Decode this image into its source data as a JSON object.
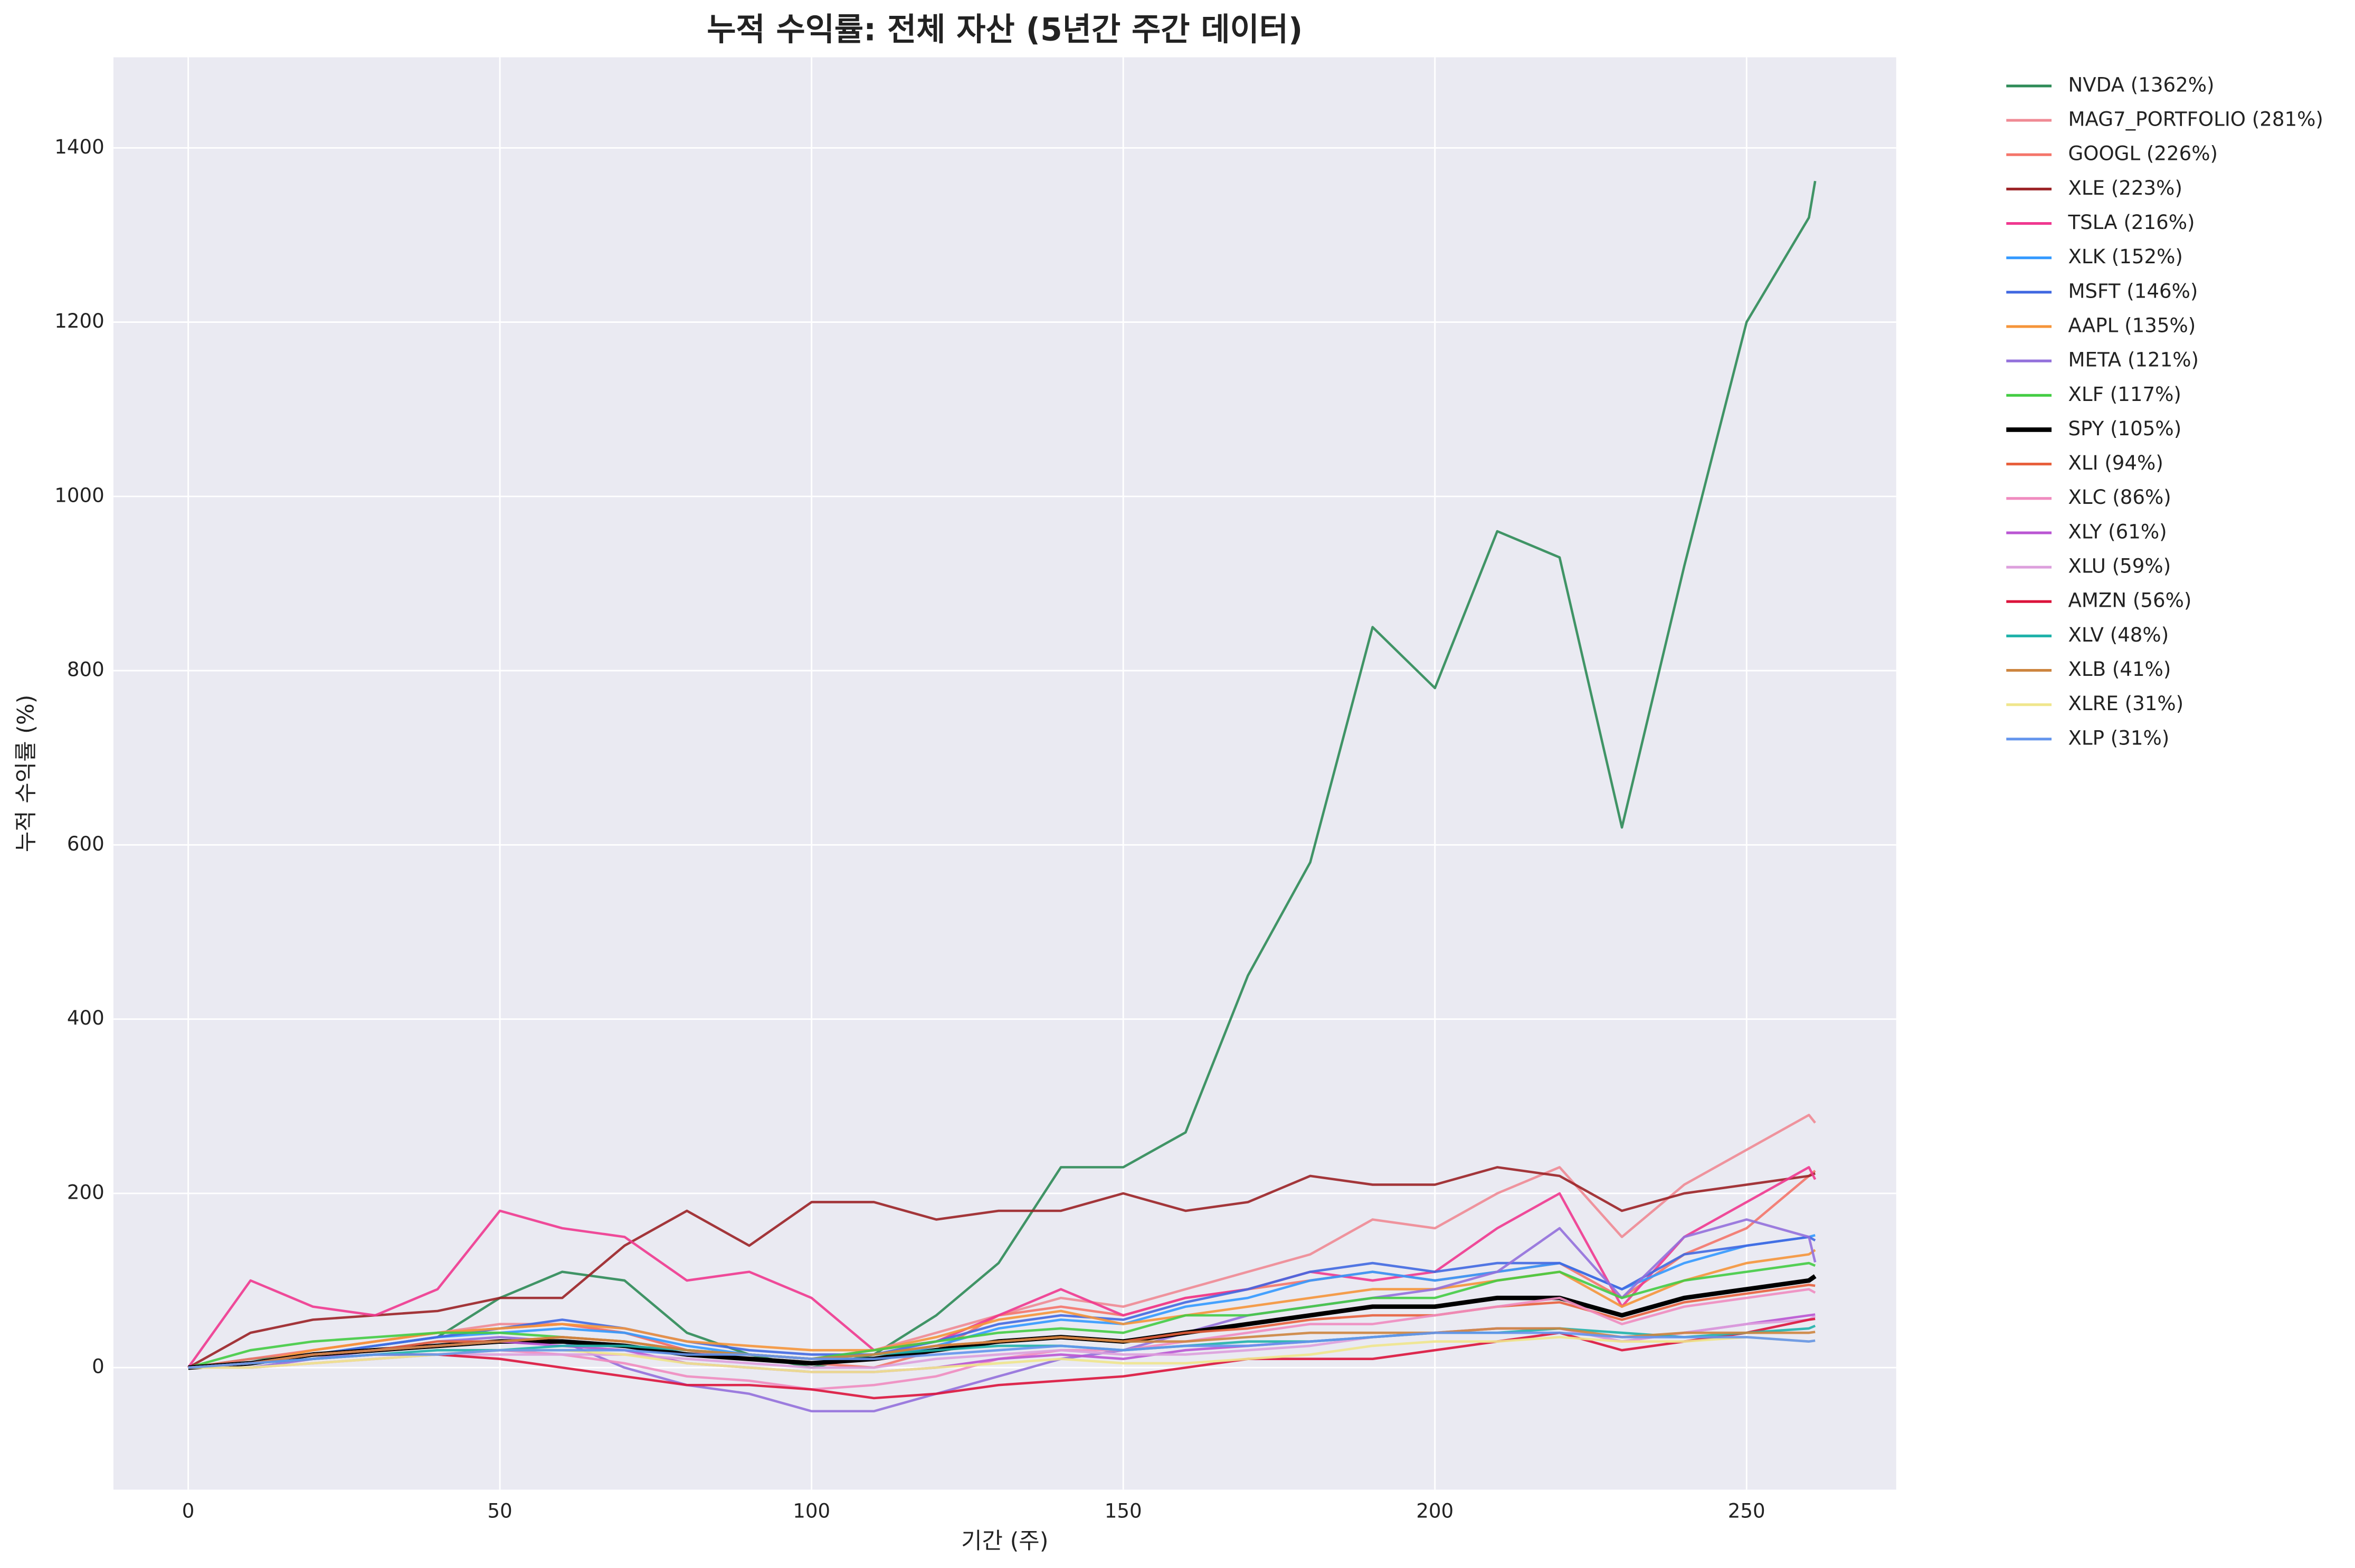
{
  "chart_data": {
    "type": "line",
    "title": "누적 수익률: 전체 자산 (5년간 주간 데이터)",
    "xlabel": "기간 (주)",
    "ylabel": "누적 수익률 (%)",
    "x": [
      0,
      10,
      20,
      30,
      40,
      50,
      60,
      70,
      80,
      90,
      100,
      110,
      120,
      130,
      140,
      150,
      160,
      170,
      180,
      190,
      200,
      210,
      220,
      230,
      240,
      250,
      260,
      261
    ],
    "xlim": [
      -12,
      274
    ],
    "xticks": [
      0,
      50,
      100,
      150,
      200,
      250
    ],
    "ylim": [
      -140,
      1504
    ],
    "yticks": [
      0,
      200,
      400,
      600,
      800,
      1000,
      1200,
      1400
    ],
    "grid": true,
    "legend": "outside-upper-right",
    "series": [
      {
        "name": "NVDA (1362%)",
        "color": "#2e8b57",
        "values": [
          0,
          10,
          15,
          25,
          35,
          80,
          110,
          100,
          40,
          15,
          0,
          15,
          60,
          120,
          230,
          230,
          270,
          450,
          580,
          850,
          780,
          960,
          930,
          620,
          920,
          1200,
          1320,
          1362
        ]
      },
      {
        "name": "MAG7_PORTFOLIO (281%)",
        "color": "#f08a94",
        "values": [
          0,
          5,
          20,
          30,
          40,
          50,
          50,
          40,
          20,
          15,
          10,
          20,
          40,
          60,
          80,
          70,
          90,
          110,
          130,
          170,
          160,
          200,
          230,
          150,
          210,
          250,
          290,
          281
        ]
      },
      {
        "name": "GOOGL (226%)",
        "color": "#f4756a",
        "values": [
          0,
          10,
          20,
          30,
          40,
          45,
          50,
          40,
          20,
          10,
          5,
          0,
          20,
          60,
          70,
          60,
          80,
          90,
          100,
          110,
          100,
          110,
          120,
          80,
          130,
          160,
          220,
          226
        ]
      },
      {
        "name": "XLE (223%)",
        "color": "#9b2226",
        "values": [
          0,
          40,
          55,
          60,
          65,
          80,
          80,
          140,
          180,
          140,
          190,
          190,
          170,
          180,
          180,
          200,
          180,
          190,
          220,
          210,
          210,
          230,
          220,
          180,
          200,
          210,
          220,
          223
        ]
      },
      {
        "name": "TSLA (216%)",
        "color": "#f0388f",
        "values": [
          0,
          100,
          70,
          60,
          90,
          180,
          160,
          150,
          100,
          110,
          80,
          20,
          30,
          60,
          90,
          60,
          80,
          90,
          110,
          100,
          110,
          160,
          200,
          70,
          150,
          190,
          230,
          216
        ]
      },
      {
        "name": "XLK (152%)",
        "color": "#3399ff",
        "values": [
          0,
          5,
          15,
          25,
          35,
          40,
          45,
          40,
          25,
          15,
          10,
          10,
          25,
          45,
          55,
          50,
          70,
          80,
          100,
          110,
          100,
          110,
          120,
          90,
          120,
          140,
          150,
          152
        ]
      },
      {
        "name": "MSFT (146%)",
        "color": "#4169e1",
        "values": [
          0,
          5,
          15,
          25,
          35,
          45,
          55,
          45,
          30,
          20,
          15,
          15,
          30,
          50,
          60,
          55,
          75,
          90,
          110,
          120,
          110,
          120,
          120,
          90,
          130,
          140,
          150,
          146
        ]
      },
      {
        "name": "AAPL (135%)",
        "color": "#f5953a",
        "values": [
          0,
          5,
          20,
          30,
          40,
          45,
          50,
          45,
          30,
          25,
          20,
          20,
          35,
          55,
          65,
          50,
          60,
          70,
          80,
          90,
          90,
          100,
          110,
          70,
          100,
          120,
          130,
          135
        ]
      },
      {
        "name": "META (121%)",
        "color": "#9370db",
        "values": [
          0,
          0,
          10,
          20,
          30,
          35,
          30,
          0,
          -20,
          -30,
          -50,
          -50,
          -30,
          -10,
          10,
          20,
          40,
          60,
          70,
          80,
          90,
          110,
          160,
          80,
          150,
          170,
          150,
          121
        ]
      },
      {
        "name": "XLF (117%)",
        "color": "#44cc44",
        "values": [
          0,
          20,
          30,
          35,
          40,
          40,
          35,
          30,
          20,
          15,
          10,
          20,
          30,
          40,
          45,
          40,
          60,
          60,
          70,
          80,
          80,
          100,
          110,
          80,
          100,
          110,
          120,
          117
        ]
      },
      {
        "name": "SPY (105%)",
        "color": "#000000",
        "linewidth": 3,
        "values": [
          0,
          5,
          15,
          20,
          25,
          30,
          30,
          25,
          15,
          10,
          5,
          10,
          20,
          30,
          35,
          30,
          40,
          50,
          60,
          70,
          70,
          80,
          80,
          60,
          80,
          90,
          100,
          105
        ]
      },
      {
        "name": "XLI (94%)",
        "color": "#e8603c",
        "values": [
          0,
          5,
          15,
          20,
          30,
          30,
          35,
          30,
          20,
          15,
          10,
          15,
          25,
          30,
          35,
          30,
          40,
          45,
          55,
          60,
          60,
          70,
          75,
          55,
          75,
          85,
          95,
          94
        ]
      },
      {
        "name": "XLC (86%)",
        "color": "#f08cc0",
        "values": [
          0,
          0,
          5,
          10,
          15,
          20,
          15,
          5,
          -10,
          -15,
          -25,
          -20,
          -10,
          10,
          20,
          20,
          30,
          40,
          50,
          50,
          60,
          70,
          80,
          50,
          70,
          80,
          90,
          86
        ]
      },
      {
        "name": "XLY (61%)",
        "color": "#ba55d3",
        "values": [
          0,
          5,
          15,
          20,
          25,
          30,
          25,
          20,
          5,
          0,
          -5,
          -5,
          0,
          10,
          15,
          10,
          20,
          25,
          30,
          35,
          40,
          45,
          45,
          30,
          40,
          50,
          60,
          61
        ]
      },
      {
        "name": "XLU (59%)",
        "color": "#dda0dd",
        "values": [
          0,
          0,
          5,
          10,
          15,
          15,
          15,
          15,
          10,
          5,
          0,
          0,
          10,
          15,
          20,
          15,
          15,
          20,
          25,
          35,
          40,
          45,
          45,
          30,
          40,
          50,
          55,
          59
        ]
      },
      {
        "name": "AMZN (56%)",
        "color": "#dc143c",
        "values": [
          0,
          5,
          10,
          15,
          15,
          10,
          0,
          -10,
          -20,
          -20,
          -25,
          -35,
          -30,
          -20,
          -15,
          -10,
          0,
          10,
          10,
          10,
          20,
          30,
          40,
          20,
          30,
          40,
          55,
          56
        ]
      },
      {
        "name": "XLV (48%)",
        "color": "#20b2aa",
        "values": [
          0,
          5,
          10,
          15,
          20,
          20,
          25,
          25,
          20,
          15,
          10,
          15,
          20,
          25,
          25,
          20,
          25,
          30,
          30,
          35,
          40,
          40,
          45,
          40,
          35,
          40,
          45,
          48
        ]
      },
      {
        "name": "XLB (41%)",
        "color": "#cd853f",
        "values": [
          0,
          5,
          15,
          20,
          25,
          30,
          35,
          30,
          20,
          15,
          10,
          15,
          25,
          30,
          35,
          30,
          30,
          35,
          40,
          40,
          40,
          45,
          45,
          35,
          40,
          40,
          40,
          41
        ]
      },
      {
        "name": "XLRE (31%)",
        "color": "#f0e68c",
        "values": [
          0,
          0,
          5,
          10,
          15,
          20,
          20,
          15,
          5,
          0,
          -5,
          -5,
          0,
          5,
          10,
          5,
          5,
          10,
          15,
          25,
          30,
          30,
          35,
          30,
          30,
          35,
          30,
          31
        ]
      },
      {
        "name": "XLP (31%)",
        "color": "#6495ed",
        "values": [
          0,
          5,
          10,
          15,
          15,
          20,
          20,
          20,
          15,
          15,
          10,
          10,
          15,
          20,
          25,
          20,
          25,
          25,
          30,
          35,
          40,
          40,
          40,
          35,
          35,
          35,
          30,
          31
        ]
      }
    ]
  }
}
